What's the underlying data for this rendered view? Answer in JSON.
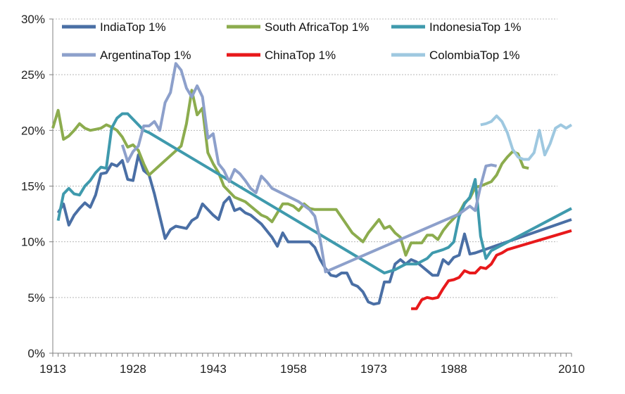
{
  "chart_data": {
    "type": "line",
    "title": "",
    "xlabel": "",
    "ylabel": "",
    "xlim": [
      1913,
      2010
    ],
    "ylim": [
      0,
      30
    ],
    "x_ticks": [
      1913,
      1928,
      1943,
      1958,
      1973,
      1988,
      2010
    ],
    "y_ticks": [
      0,
      5,
      10,
      15,
      20,
      25,
      30
    ],
    "y_tick_labels": [
      "0%",
      "5%",
      "10%",
      "15%",
      "20%",
      "25%",
      "30%"
    ],
    "grid": "horizontal",
    "legend_position": "top",
    "series": [
      {
        "name": "IndiaTop 1%",
        "color": "#4a6fa5",
        "points": [
          [
            1914,
            12.6
          ],
          [
            1915,
            13.4
          ],
          [
            1916,
            11.5
          ],
          [
            1917,
            12.4
          ],
          [
            1918,
            13.0
          ],
          [
            1919,
            13.5
          ],
          [
            1920,
            13.1
          ],
          [
            1921,
            14.2
          ],
          [
            1922,
            16.1
          ],
          [
            1923,
            16.2
          ],
          [
            1924,
            17.0
          ],
          [
            1925,
            16.8
          ],
          [
            1926,
            17.3
          ],
          [
            1927,
            15.6
          ],
          [
            1928,
            15.5
          ],
          [
            1929,
            17.8
          ],
          [
            1930,
            16.4
          ],
          [
            1931,
            16.0
          ],
          [
            1932,
            14.3
          ],
          [
            1933,
            12.3
          ],
          [
            1934,
            10.3
          ],
          [
            1935,
            11.1
          ],
          [
            1936,
            11.4
          ],
          [
            1937,
            11.3
          ],
          [
            1938,
            11.2
          ],
          [
            1939,
            11.9
          ],
          [
            1940,
            12.2
          ],
          [
            1941,
            13.4
          ],
          [
            1942,
            12.9
          ],
          [
            1943,
            12.4
          ],
          [
            1944,
            12.0
          ],
          [
            1945,
            13.5
          ],
          [
            1946,
            14.0
          ],
          [
            1947,
            12.8
          ],
          [
            1948,
            13.0
          ],
          [
            1949,
            12.6
          ],
          [
            1950,
            12.4
          ],
          [
            1951,
            12.0
          ],
          [
            1952,
            11.6
          ],
          [
            1953,
            11.0
          ],
          [
            1954,
            10.4
          ],
          [
            1955,
            9.6
          ],
          [
            1956,
            10.8
          ],
          [
            1957,
            10.0
          ],
          [
            1958,
            10.0
          ],
          [
            1959,
            10.0
          ],
          [
            1960,
            10.0
          ],
          [
            1961,
            10.0
          ],
          [
            1962,
            9.5
          ],
          [
            1963,
            8.4
          ],
          [
            1964,
            7.6
          ],
          [
            1965,
            7.0
          ],
          [
            1966,
            6.9
          ],
          [
            1967,
            7.2
          ],
          [
            1968,
            7.2
          ],
          [
            1969,
            6.2
          ],
          [
            1970,
            6.0
          ],
          [
            1971,
            5.5
          ],
          [
            1972,
            4.6
          ],
          [
            1973,
            4.4
          ],
          [
            1974,
            4.5
          ],
          [
            1975,
            6.4
          ],
          [
            1976,
            6.4
          ],
          [
            1977,
            8.0
          ],
          [
            1978,
            8.4
          ],
          [
            1979,
            8.0
          ],
          [
            1980,
            8.4
          ],
          [
            1981,
            8.2
          ],
          [
            1982,
            7.8
          ],
          [
            1983,
            7.4
          ],
          [
            1984,
            7.0
          ],
          [
            1985,
            7.0
          ],
          [
            1986,
            8.4
          ],
          [
            1987,
            8.0
          ],
          [
            1988,
            8.6
          ],
          [
            1989,
            8.8
          ],
          [
            1990,
            10.7
          ],
          [
            1991,
            8.9
          ],
          [
            1992,
            9.0
          ],
          [
            2010,
            12.0
          ]
        ]
      },
      {
        "name": "South AfricaTop 1%",
        "color": "#8cac4e",
        "points": [
          [
            1913,
            20.2
          ],
          [
            1914,
            21.8
          ],
          [
            1915,
            19.2
          ],
          [
            1916,
            19.5
          ],
          [
            1917,
            20.0
          ],
          [
            1918,
            20.6
          ],
          [
            1919,
            20.2
          ],
          [
            1920,
            20.0
          ],
          [
            1921,
            20.1
          ],
          [
            1922,
            20.2
          ],
          [
            1923,
            20.5
          ],
          [
            1924,
            20.3
          ],
          [
            1925,
            20.0
          ],
          [
            1926,
            19.4
          ],
          [
            1927,
            18.5
          ],
          [
            1928,
            18.7
          ],
          [
            1929,
            18.2
          ],
          [
            1930,
            17.0
          ],
          [
            1931,
            16.0
          ],
          [
            1937,
            18.6
          ],
          [
            1938,
            20.6
          ],
          [
            1939,
            23.6
          ],
          [
            1940,
            21.4
          ],
          [
            1941,
            22.0
          ],
          [
            1942,
            18.0
          ],
          [
            1943,
            17.0
          ],
          [
            1944,
            16.2
          ],
          [
            1945,
            15.0
          ],
          [
            1946,
            14.5
          ],
          [
            1947,
            14.0
          ],
          [
            1948,
            13.8
          ],
          [
            1949,
            13.6
          ],
          [
            1950,
            13.2
          ],
          [
            1951,
            12.8
          ],
          [
            1952,
            12.4
          ],
          [
            1953,
            12.2
          ],
          [
            1954,
            11.8
          ],
          [
            1955,
            12.6
          ],
          [
            1956,
            13.4
          ],
          [
            1957,
            13.4
          ],
          [
            1958,
            13.2
          ],
          [
            1959,
            12.8
          ],
          [
            1960,
            13.4
          ],
          [
            1961,
            13.0
          ],
          [
            1962,
            12.9
          ],
          [
            1963,
            12.9
          ],
          [
            1964,
            12.9
          ],
          [
            1965,
            12.9
          ],
          [
            1966,
            12.9
          ],
          [
            1967,
            12.2
          ],
          [
            1968,
            11.5
          ],
          [
            1969,
            10.8
          ],
          [
            1970,
            10.4
          ],
          [
            1971,
            10.0
          ],
          [
            1972,
            10.8
          ],
          [
            1973,
            11.4
          ],
          [
            1974,
            12.0
          ],
          [
            1975,
            11.2
          ],
          [
            1976,
            11.4
          ],
          [
            1977,
            10.8
          ],
          [
            1978,
            10.4
          ],
          [
            1979,
            8.8
          ],
          [
            1980,
            9.9
          ],
          [
            1981,
            9.9
          ],
          [
            1982,
            9.9
          ],
          [
            1983,
            10.6
          ],
          [
            1984,
            10.6
          ],
          [
            1985,
            10.2
          ],
          [
            1986,
            11.0
          ],
          [
            1987,
            11.6
          ],
          [
            1988,
            12.1
          ],
          [
            1989,
            12.6
          ],
          [
            1990,
            13.5
          ],
          [
            1991,
            13.9
          ],
          [
            1992,
            14.9
          ],
          [
            1993,
            15.0
          ],
          [
            1994,
            15.2
          ],
          [
            1995,
            15.4
          ],
          [
            1996,
            16.0
          ],
          [
            1997,
            17.0
          ],
          [
            1998,
            17.6
          ],
          [
            1999,
            18.1
          ],
          [
            2000,
            17.9
          ],
          [
            2001,
            16.7
          ],
          [
            2002,
            16.6
          ]
        ]
      },
      {
        "name": "IndonesiaTop 1%",
        "color": "#3f9aad",
        "points": [
          [
            1914,
            11.9
          ],
          [
            1915,
            14.3
          ],
          [
            1916,
            14.8
          ],
          [
            1917,
            14.3
          ],
          [
            1918,
            14.2
          ],
          [
            1919,
            15.0
          ],
          [
            1920,
            15.5
          ],
          [
            1921,
            16.2
          ],
          [
            1922,
            16.7
          ],
          [
            1923,
            16.6
          ],
          [
            1924,
            20.2
          ],
          [
            1925,
            21.1
          ],
          [
            1926,
            21.5
          ],
          [
            1927,
            21.5
          ],
          [
            1928,
            21.0
          ],
          [
            1929,
            20.5
          ],
          [
            1930,
            20.0
          ],
          [
            1931,
            19.8
          ],
          [
            1975,
            7.2
          ],
          [
            1977,
            7.5
          ],
          [
            1979,
            8.0
          ],
          [
            1981,
            8.0
          ],
          [
            1983,
            8.5
          ],
          [
            1984,
            9.0
          ],
          [
            1986,
            9.3
          ],
          [
            1987,
            9.5
          ],
          [
            1988,
            10.0
          ],
          [
            1989,
            12.3
          ],
          [
            1990,
            13.4
          ],
          [
            1991,
            14.0
          ],
          [
            1992,
            15.6
          ],
          [
            1993,
            10.5
          ],
          [
            1994,
            8.5
          ],
          [
            1995,
            9.2
          ],
          [
            2010,
            13.0
          ]
        ]
      },
      {
        "name": "ArgentinaTop 1%",
        "color": "#8da0cb",
        "points": [
          [
            1926,
            18.7
          ],
          [
            1927,
            17.2
          ],
          [
            1928,
            18.1
          ],
          [
            1929,
            18.6
          ],
          [
            1930,
            20.4
          ],
          [
            1931,
            20.4
          ],
          [
            1932,
            20.8
          ],
          [
            1933,
            20.0
          ],
          [
            1934,
            22.5
          ],
          [
            1935,
            23.4
          ],
          [
            1936,
            26.0
          ],
          [
            1937,
            25.4
          ],
          [
            1938,
            23.8
          ],
          [
            1939,
            23.0
          ],
          [
            1940,
            24.0
          ],
          [
            1941,
            23.0
          ],
          [
            1942,
            19.3
          ],
          [
            1943,
            19.7
          ],
          [
            1944,
            17.0
          ],
          [
            1945,
            16.4
          ],
          [
            1946,
            15.4
          ],
          [
            1947,
            16.5
          ],
          [
            1948,
            16.1
          ],
          [
            1949,
            15.5
          ],
          [
            1950,
            14.8
          ],
          [
            1951,
            14.4
          ],
          [
            1952,
            15.9
          ],
          [
            1953,
            15.4
          ],
          [
            1954,
            14.8
          ],
          [
            1959,
            13.6
          ],
          [
            1961,
            12.9
          ],
          [
            1962,
            12.3
          ],
          [
            1963,
            10.2
          ],
          [
            1964,
            7.3
          ],
          [
            1989,
            12.5
          ],
          [
            1991,
            13.2
          ],
          [
            1992,
            12.8
          ],
          [
            1993,
            15.0
          ],
          [
            1994,
            16.8
          ],
          [
            1995,
            16.9
          ],
          [
            1996,
            16.8
          ]
        ]
      },
      {
        "name": "ChinaTop 1%",
        "color": "#e8191b",
        "points": [
          [
            1980,
            4.0
          ],
          [
            1981,
            4.0
          ],
          [
            1982,
            4.8
          ],
          [
            1983,
            5.0
          ],
          [
            1984,
            4.9
          ],
          [
            1985,
            5.0
          ],
          [
            1986,
            5.8
          ],
          [
            1987,
            6.5
          ],
          [
            1988,
            6.6
          ],
          [
            1989,
            6.8
          ],
          [
            1990,
            7.4
          ],
          [
            1991,
            7.2
          ],
          [
            1992,
            7.2
          ],
          [
            1993,
            7.7
          ],
          [
            1994,
            7.6
          ],
          [
            1995,
            8.0
          ],
          [
            1996,
            8.8
          ],
          [
            1997,
            9.0
          ],
          [
            1998,
            9.3
          ],
          [
            2010,
            11.0
          ]
        ]
      },
      {
        "name": "ColombiaTop 1%",
        "color": "#9ec8e0",
        "points": [
          [
            1993,
            20.5
          ],
          [
            1994,
            20.6
          ],
          [
            1995,
            20.8
          ],
          [
            1996,
            21.3
          ],
          [
            1997,
            20.8
          ],
          [
            1998,
            19.8
          ],
          [
            1999,
            18.3
          ],
          [
            2000,
            17.6
          ],
          [
            2001,
            17.4
          ],
          [
            2002,
            17.4
          ],
          [
            2003,
            18.0
          ],
          [
            2004,
            20.0
          ],
          [
            2005,
            17.8
          ],
          [
            2006,
            18.8
          ],
          [
            2007,
            20.2
          ],
          [
            2008,
            20.5
          ],
          [
            2009,
            20.2
          ],
          [
            2010,
            20.5
          ]
        ]
      }
    ]
  }
}
